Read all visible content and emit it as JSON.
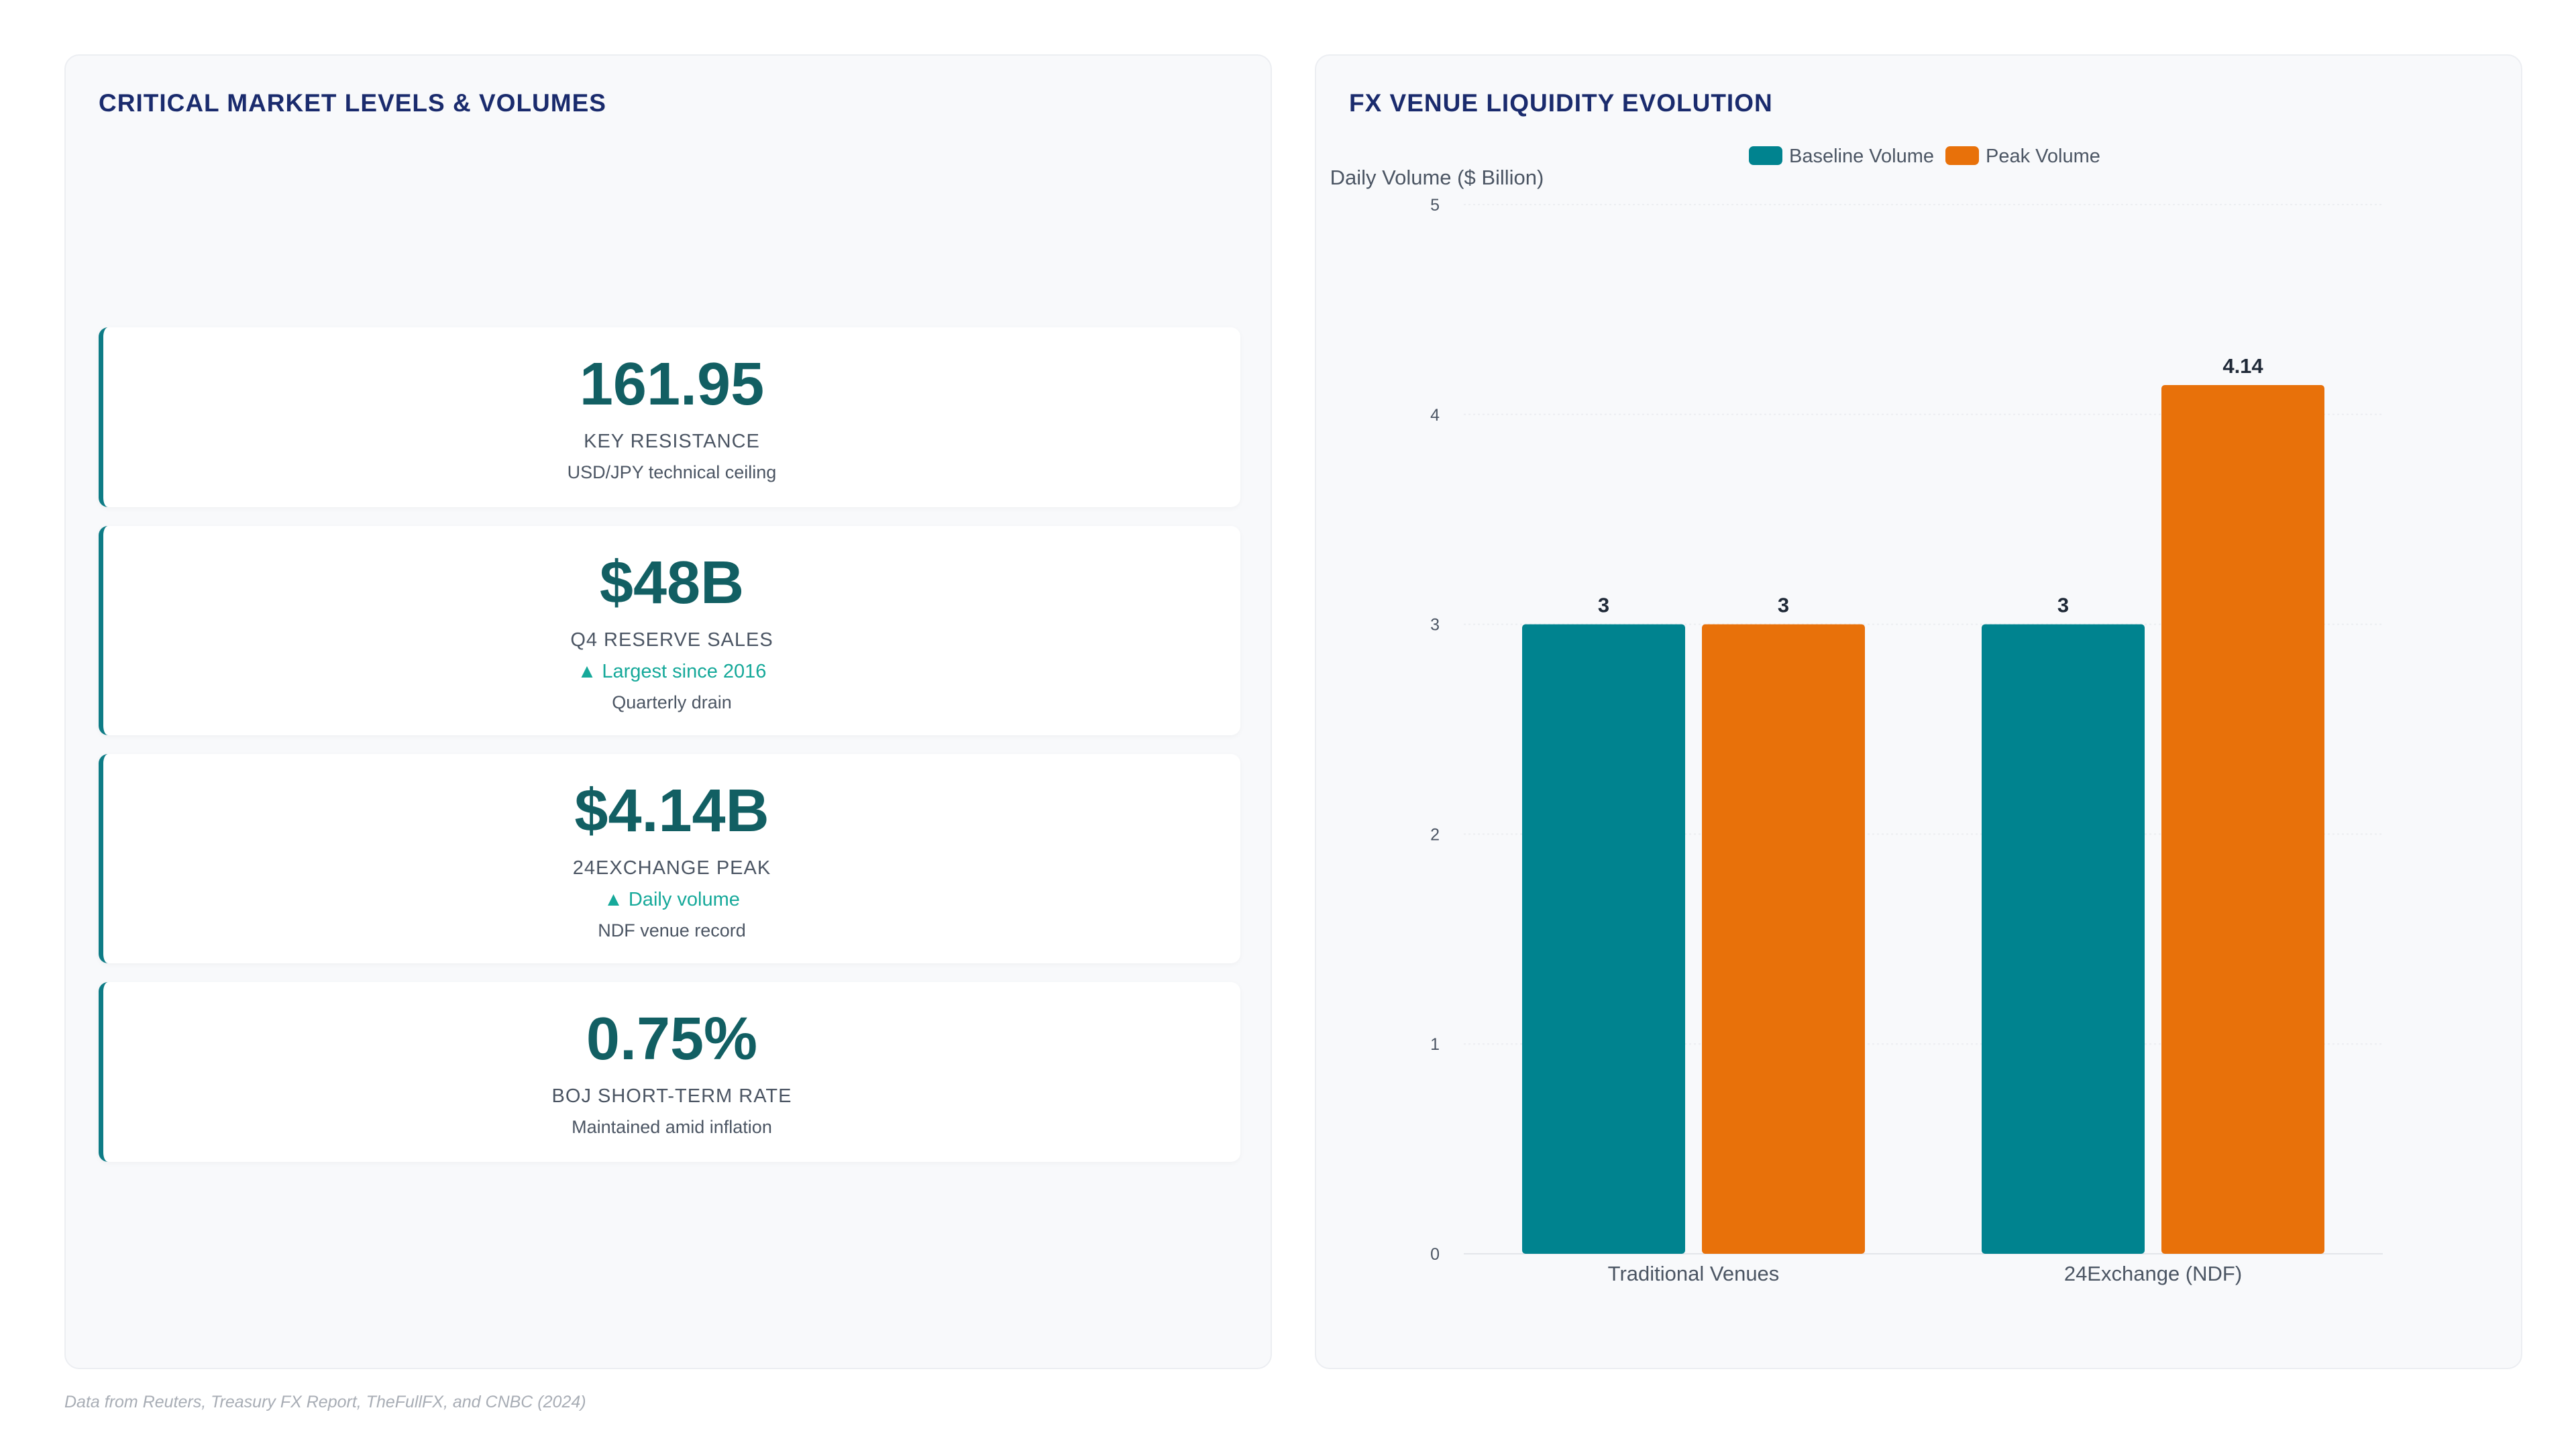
{
  "left_panel": {
    "title": "CRITICAL MARKET LEVELS & VOLUMES",
    "cards": [
      {
        "value": "161.95",
        "label": "KEY RESISTANCE",
        "trend": "",
        "note": "USD/JPY technical ceiling"
      },
      {
        "value": "$48B",
        "label": "Q4 RESERVE SALES",
        "trend": "▲ Largest since 2016",
        "note": "Quarterly drain"
      },
      {
        "value": "$4.14B",
        "label": "24EXCHANGE PEAK",
        "trend": "▲ Daily volume",
        "note": "NDF venue record"
      },
      {
        "value": "0.75%",
        "label": "BOJ SHORT-TERM RATE",
        "trend": "",
        "note": "Maintained amid inflation"
      }
    ]
  },
  "right_panel": {
    "title": "FX VENUE LIQUIDITY EVOLUTION"
  },
  "colors": {
    "baseline": "#00838f",
    "peak": "#e8710a",
    "accent": "#0e7c86",
    "value_text": "#125f63",
    "title_text": "#1a2b6d",
    "trend_text": "#16a99a"
  },
  "chart_data": {
    "type": "bar",
    "title": "",
    "ylabel": "Daily Volume ($ Billion)",
    "xlabel": "",
    "categories": [
      "Traditional Venues",
      "24Exchange (NDF)"
    ],
    "series": [
      {
        "name": "Baseline Volume",
        "values": [
          3,
          3
        ]
      },
      {
        "name": "Peak Volume",
        "values": [
          3,
          4.14
        ]
      }
    ],
    "ylim": [
      0,
      5
    ],
    "yticks": [
      0,
      1,
      2,
      3,
      4,
      5
    ],
    "data_labels": true,
    "grid": true,
    "legend_position": "top-center"
  },
  "footnote": "Data from Reuters, Treasury FX Report, TheFullFX, and CNBC (2024)"
}
